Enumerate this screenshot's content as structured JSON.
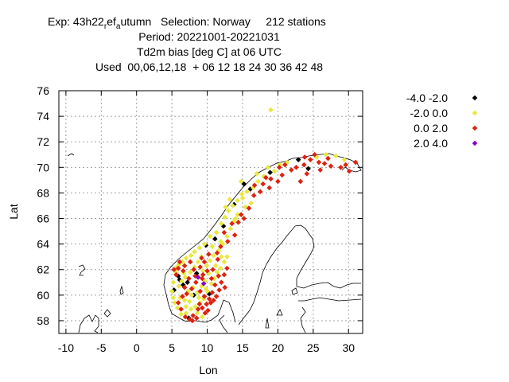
{
  "chart_data": {
    "type": "scatter",
    "title_lines": [
      {
        "text": "Exp: 43h22",
        "sub1": "r",
        "mid1": "ef",
        "sub2": "a",
        "mid2": "utumn",
        "rest": "   Selection: Norway     212 stations"
      },
      "Period: 20221001-20221031",
      "Td2m bias [deg C] at  06 UTC",
      "Used  00,06,12,18  + 06 12 18 24 30 36 42 48"
    ],
    "xlabel": "Lon",
    "ylabel": "Lat",
    "xlim": [
      -11,
      32
    ],
    "ylim": [
      57,
      76
    ],
    "xticks": [
      -10,
      -5,
      0,
      5,
      10,
      15,
      20,
      25,
      30
    ],
    "yticks": [
      58,
      60,
      62,
      64,
      66,
      68,
      70,
      72,
      74,
      76
    ],
    "grid": true,
    "legend_position": "top-right",
    "series": [
      {
        "name": "-4.0 -2.0",
        "color": "#000000",
        "points": [
          [
            5.3,
            60.4
          ],
          [
            6.1,
            61.2
          ],
          [
            6.6,
            60.8
          ],
          [
            7.2,
            61.0
          ],
          [
            9.8,
            63.9
          ],
          [
            11.1,
            64.4
          ],
          [
            8.5,
            61.7
          ],
          [
            13.8,
            67.1
          ],
          [
            16.1,
            68.3
          ],
          [
            15.2,
            68.7
          ],
          [
            18.9,
            69.6
          ],
          [
            22.9,
            70.6
          ],
          [
            24.3,
            69.9
          ],
          [
            7.4,
            58.2
          ],
          [
            10.3,
            60.1
          ],
          [
            12.3,
            65.4
          ],
          [
            8.1,
            60.0
          ],
          [
            5.9,
            61.5
          ]
        ]
      },
      {
        "name": "-2.0 0.0",
        "color": "#e8e840",
        "points": [
          [
            19.0,
            74.5
          ],
          [
            5.0,
            60.3
          ],
          [
            5.2,
            61.0
          ],
          [
            5.6,
            61.8
          ],
          [
            6.0,
            62.4
          ],
          [
            6.5,
            62.6
          ],
          [
            7.0,
            62.9
          ],
          [
            7.7,
            63.1
          ],
          [
            8.2,
            63.4
          ],
          [
            8.9,
            63.7
          ],
          [
            9.6,
            64.0
          ],
          [
            10.4,
            64.6
          ],
          [
            11.3,
            64.9
          ],
          [
            12.0,
            65.6
          ],
          [
            12.5,
            66.1
          ],
          [
            13.0,
            66.6
          ],
          [
            13.6,
            67.0
          ],
          [
            14.3,
            67.4
          ],
          [
            15.0,
            67.6
          ],
          [
            15.6,
            68.1
          ],
          [
            16.5,
            68.4
          ],
          [
            17.2,
            68.9
          ],
          [
            18.0,
            69.3
          ],
          [
            19.5,
            69.7
          ],
          [
            20.3,
            70.2
          ],
          [
            21.3,
            70.4
          ],
          [
            25.5,
            70.8
          ],
          [
            26.8,
            71.0
          ],
          [
            28.2,
            70.9
          ],
          [
            29.4,
            70.6
          ],
          [
            5.4,
            59.4
          ],
          [
            5.8,
            59.0
          ],
          [
            6.3,
            58.5
          ],
          [
            7.0,
            58.6
          ],
          [
            7.7,
            58.9
          ],
          [
            8.3,
            59.1
          ],
          [
            9.0,
            59.4
          ],
          [
            9.5,
            59.7
          ],
          [
            10.0,
            60.3
          ],
          [
            10.6,
            60.9
          ],
          [
            11.0,
            61.3
          ],
          [
            11.4,
            61.8
          ],
          [
            11.9,
            62.1
          ],
          [
            12.4,
            62.6
          ],
          [
            12.8,
            63.0
          ],
          [
            8.9,
            61.4
          ],
          [
            9.4,
            61.9
          ],
          [
            9.9,
            62.3
          ],
          [
            10.4,
            62.7
          ],
          [
            10.9,
            63.1
          ],
          [
            11.6,
            63.5
          ],
          [
            12.2,
            64.0
          ],
          [
            12.8,
            64.6
          ],
          [
            13.3,
            65.2
          ],
          [
            13.8,
            65.8
          ],
          [
            14.3,
            66.3
          ],
          [
            6.9,
            61.4
          ],
          [
            7.6,
            61.8
          ],
          [
            8.2,
            62.2
          ],
          [
            8.7,
            62.6
          ],
          [
            9.2,
            63.0
          ],
          [
            7.3,
            60.3
          ],
          [
            8.0,
            60.6
          ],
          [
            8.6,
            60.2
          ],
          [
            9.2,
            60.7
          ],
          [
            9.7,
            61.1
          ],
          [
            6.2,
            59.8
          ],
          [
            6.8,
            59.6
          ],
          [
            7.5,
            59.5
          ],
          [
            6.0,
            60.7
          ],
          [
            6.7,
            61.7
          ],
          [
            14.8,
            68.9
          ],
          [
            17.0,
            69.5
          ],
          [
            18.6,
            70.0
          ],
          [
            12.0,
            63.0
          ],
          [
            11.2,
            62.3
          ],
          [
            10.2,
            61.7
          ],
          [
            5.7,
            62.2
          ],
          [
            8.6,
            58.6
          ],
          [
            9.3,
            58.3
          ],
          [
            14.0,
            66.0
          ],
          [
            15.4,
            66.9
          ],
          [
            13.2,
            67.5
          ],
          [
            11.9,
            64.2
          ],
          [
            10.7,
            63.8
          ],
          [
            6.4,
            61.1
          ],
          [
            7.8,
            60.0
          ],
          [
            5.2,
            59.8
          ],
          [
            12.6,
            66.9
          ],
          [
            16.2,
            67.2
          ],
          [
            14.9,
            67.9
          ],
          [
            9.8,
            60.5
          ],
          [
            8.8,
            59.8
          ],
          [
            7.0,
            59.1
          ]
        ]
      },
      {
        "name": "0.0 2.0",
        "color": "#dd2211",
        "points": [
          [
            5.9,
            62.1
          ],
          [
            6.8,
            62.3
          ],
          [
            7.6,
            62.6
          ],
          [
            8.1,
            62.0
          ],
          [
            9.0,
            62.2
          ],
          [
            9.6,
            62.6
          ],
          [
            10.2,
            63.2
          ],
          [
            11.4,
            63.3
          ],
          [
            6.6,
            61.9
          ],
          [
            7.4,
            61.3
          ],
          [
            8.3,
            61.5
          ],
          [
            9.3,
            61.3
          ],
          [
            10.0,
            61.9
          ],
          [
            10.8,
            62.0
          ],
          [
            11.6,
            61.5
          ],
          [
            11.1,
            60.8
          ],
          [
            10.7,
            60.2
          ],
          [
            10.3,
            59.7
          ],
          [
            9.9,
            59.3
          ],
          [
            9.3,
            59.0
          ],
          [
            8.7,
            58.9
          ],
          [
            8.0,
            58.4
          ],
          [
            7.5,
            58.1
          ],
          [
            6.9,
            58.3
          ],
          [
            6.3,
            58.9
          ],
          [
            5.9,
            59.4
          ],
          [
            6.5,
            59.9
          ],
          [
            7.1,
            60.1
          ],
          [
            7.8,
            60.5
          ],
          [
            8.4,
            61.0
          ],
          [
            9.0,
            60.3
          ],
          [
            9.6,
            59.9
          ],
          [
            10.5,
            59.4
          ],
          [
            11.3,
            59.9
          ],
          [
            11.7,
            60.4
          ],
          [
            12.0,
            61.0
          ],
          [
            12.4,
            61.6
          ],
          [
            12.9,
            64.2
          ],
          [
            12.4,
            64.9
          ],
          [
            13.5,
            65.6
          ],
          [
            14.8,
            66.3
          ],
          [
            15.9,
            66.8
          ],
          [
            16.6,
            67.8
          ],
          [
            17.9,
            68.7
          ],
          [
            19.0,
            69.1
          ],
          [
            20.6,
            69.4
          ],
          [
            21.9,
            69.8
          ],
          [
            23.7,
            70.2
          ],
          [
            24.6,
            70.6
          ],
          [
            25.8,
            70.4
          ],
          [
            26.6,
            70.3
          ],
          [
            27.5,
            70.1
          ],
          [
            28.9,
            70.0
          ],
          [
            30.1,
            69.7
          ],
          [
            29.6,
            70.2
          ],
          [
            31.0,
            70.4
          ],
          [
            24.1,
            69.5
          ],
          [
            23.2,
            68.9
          ],
          [
            20.0,
            68.9
          ],
          [
            18.8,
            68.4
          ],
          [
            17.5,
            68.1
          ],
          [
            22.6,
            70.0
          ],
          [
            21.0,
            70.2
          ],
          [
            6.1,
            62.6
          ],
          [
            5.6,
            61.6
          ],
          [
            9.2,
            62.9
          ],
          [
            10.6,
            61.3
          ],
          [
            8.9,
            59.3
          ],
          [
            7.9,
            58.0
          ],
          [
            11.9,
            63.8
          ],
          [
            14.4,
            65.7
          ],
          [
            16.7,
            68.6
          ],
          [
            18.3,
            69.2
          ],
          [
            5.3,
            62.0
          ],
          [
            6.8,
            60.6
          ],
          [
            9.4,
            61.6
          ],
          [
            10.9,
            59.6
          ],
          [
            12.5,
            60.6
          ],
          [
            13.9,
            64.7
          ],
          [
            15.2,
            66.0
          ],
          [
            20.2,
            70.0
          ],
          [
            25.2,
            71.0
          ],
          [
            27.1,
            70.7
          ],
          [
            23.8,
            70.8
          ],
          [
            26.0,
            69.8
          ],
          [
            9.7,
            58.6
          ],
          [
            8.5,
            58.2
          ],
          [
            10.1,
            58.8
          ],
          [
            12.8,
            62.1
          ],
          [
            11.5,
            62.8
          ]
        ]
      },
      {
        "name": "2.0 4.0",
        "color": "#8800bb",
        "points": [
          [
            8.7,
            61.4
          ],
          [
            9.5,
            60.9
          ]
        ]
      }
    ]
  }
}
